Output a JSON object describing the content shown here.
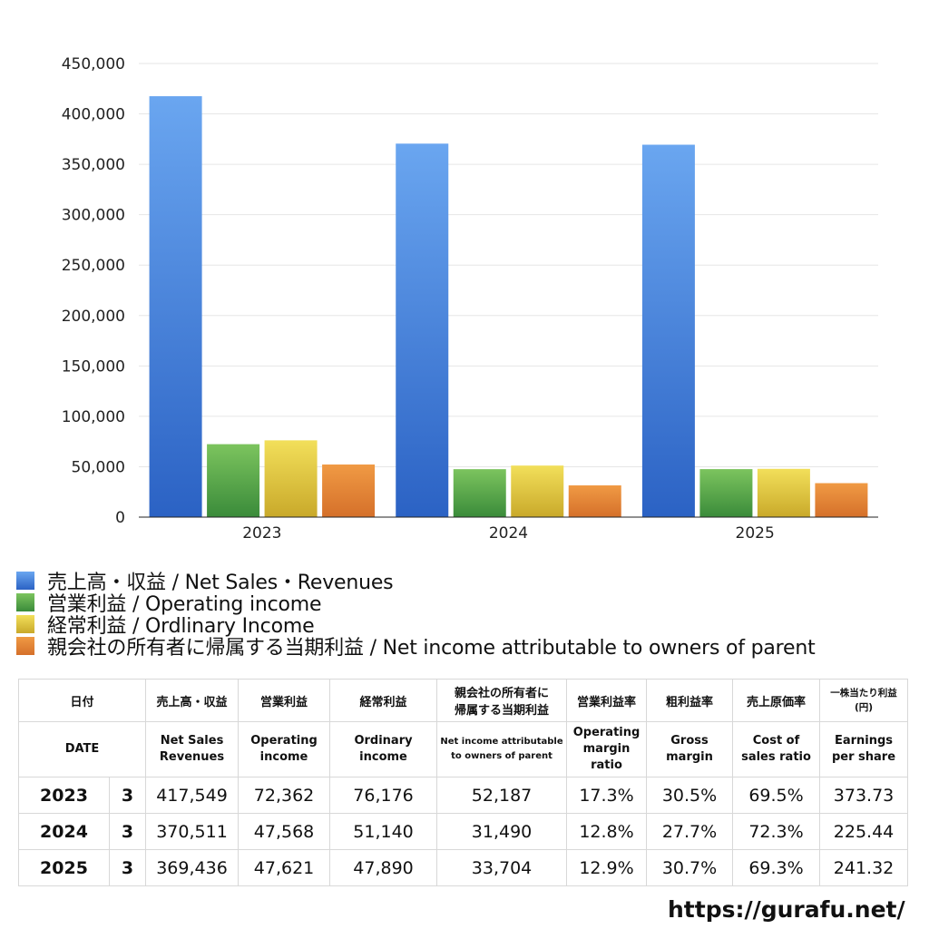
{
  "chart_data": {
    "type": "bar",
    "categories": [
      "2023",
      "2024",
      "2025"
    ],
    "series": [
      {
        "name": "売上高・収益 / Net Sales・Revenues",
        "values": [
          417549,
          370511,
          369436
        ],
        "color": "#3a78dc"
      },
      {
        "name": "営業利益 / Operating income",
        "values": [
          72362,
          47568,
          47621
        ],
        "color": "#4ea046"
      },
      {
        "name": "経常利益 / Ordlinary Income",
        "values": [
          76176,
          51140,
          47890
        ],
        "color": "#e3c43a"
      },
      {
        "name": "親会社の所有者に帰属する当期利益 / Net income attributable to owners of parent",
        "values": [
          52187,
          31490,
          33704
        ],
        "color": "#e07d2e"
      }
    ],
    "ylim": [
      0,
      450000
    ],
    "yticks": [
      "0",
      "50,000",
      "100,000",
      "150,000",
      "200,000",
      "250,000",
      "300,000",
      "350,000",
      "400,000",
      "450,000"
    ],
    "grid": true,
    "legend_position": "bottom"
  },
  "table": {
    "header_jp": {
      "date": "日付",
      "sales": "売上高・収益",
      "op": "営業利益",
      "ord": "経常利益",
      "net_line1": "親会社の所有者に",
      "net_line2": "帰属する当期利益",
      "opmargin": "営業利益率",
      "gross": "粗利益率",
      "cost": "売上原価率",
      "eps_line1": "一株当たり利益",
      "eps_line2": "(円)"
    },
    "header_en": {
      "date": "DATE",
      "sales_line1": "Net Sales",
      "sales_line2": "Revenues",
      "op_line1": "Operating",
      "op_line2": "income",
      "ord_line1": "Ordinary",
      "ord_line2": "income",
      "net_line1": "Net income attributable",
      "net_line2": "to owners of parent",
      "opmargin_line1": "Operating",
      "opmargin_line2": "margin",
      "opmargin_line3": "ratio",
      "gross_line1": "Gross",
      "gross_line2": "margin",
      "cost_line1": "Cost of",
      "cost_line2": "sales ratio",
      "eps_line1": "Earnings",
      "eps_line2": "per share"
    },
    "rows": [
      {
        "year": "2023",
        "month": "3",
        "sales": "417,549",
        "op": "72,362",
        "ord": "76,176",
        "net": "52,187",
        "opmargin": "17.3%",
        "gross": "30.5%",
        "cost": "69.5%",
        "eps": "373.73"
      },
      {
        "year": "2024",
        "month": "3",
        "sales": "370,511",
        "op": "47,568",
        "ord": "51,140",
        "net": "31,490",
        "opmargin": "12.8%",
        "gross": "27.7%",
        "cost": "72.3%",
        "eps": "225.44"
      },
      {
        "year": "2025",
        "month": "3",
        "sales": "369,436",
        "op": "47,621",
        "ord": "47,890",
        "net": "33,704",
        "opmargin": "12.9%",
        "gross": "30.7%",
        "cost": "69.3%",
        "eps": "241.32"
      }
    ]
  },
  "source": "https://gurafu.net/"
}
